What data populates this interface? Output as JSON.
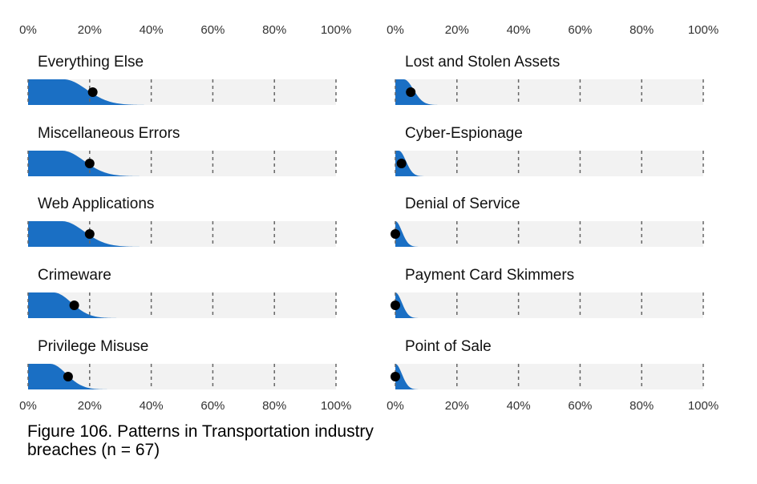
{
  "chart_data": [
    {
      "type": "area",
      "subtype": "distribution slabs with point estimates",
      "x_ticks": [
        "0%",
        "20%",
        "40%",
        "60%",
        "80%",
        "100%"
      ],
      "xlim": [
        0,
        100
      ],
      "grid": "dashed vertical lines at 20% intervals",
      "colors": {
        "fill": "#1a6fc4",
        "track": "#f2f2f2",
        "point": "#000000",
        "grid": "#666666"
      },
      "panels": [
        {
          "label": "Everything Else",
          "point": 21
        },
        {
          "label": "Miscellaneous Errors",
          "point": 20
        },
        {
          "label": "Web Applications",
          "point": 20
        },
        {
          "label": "Crimeware",
          "point": 15
        },
        {
          "label": "Privilege Misuse",
          "point": 13
        }
      ]
    },
    {
      "type": "area",
      "subtype": "distribution slabs with point estimates",
      "x_ticks": [
        "0%",
        "20%",
        "40%",
        "60%",
        "80%",
        "100%"
      ],
      "xlim": [
        0,
        100
      ],
      "grid": "dashed vertical lines at 20% intervals",
      "colors": {
        "fill": "#1a6fc4",
        "track": "#f2f2f2",
        "point": "#000000",
        "grid": "#666666"
      },
      "panels": [
        {
          "label": "Lost and Stolen Assets",
          "point": 5
        },
        {
          "label": "Cyber-Espionage",
          "point": 2
        },
        {
          "label": "Denial of Service",
          "point": 0
        },
        {
          "label": "Payment Card Skimmers",
          "point": 0
        },
        {
          "label": "Point of Sale",
          "point": 0
        }
      ]
    }
  ],
  "caption": "Figure 106. Patterns in Transportation industry breaches (n = 67)"
}
